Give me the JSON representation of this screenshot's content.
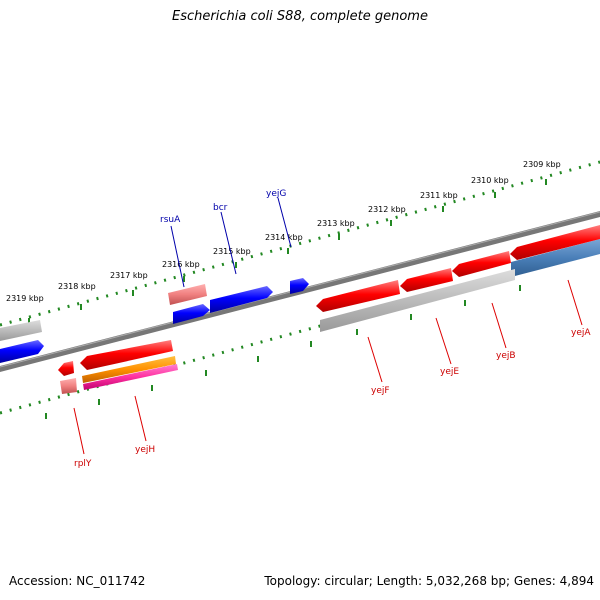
{
  "title": "Escherichia coli S88, complete genome",
  "footer": {
    "accession": "Accession: NC_011742",
    "topology": "Topology: circular; Length: 5,032,268 bp; Genes: 4,894"
  },
  "colors": {
    "forward_cds": "#ee0000",
    "reverse_cds": "#0000ee",
    "forward_label": "#cc0000",
    "reverse_label": "#0000aa",
    "ruler_ticks": "#228822",
    "backbone": "#777777"
  },
  "scale_labels": [
    "2309 kbp",
    "2310 kbp",
    "2311 kbp",
    "2312 kbp",
    "2313 kbp",
    "2314 kbp",
    "2315 kbp",
    "2316 kbp",
    "2317 kbp",
    "2318 kbp",
    "2319 kbp"
  ],
  "genes_forward_strand_labels": [
    "rsuA",
    "bcr",
    "yejG"
  ],
  "genes_reverse_strand_labels": [
    "yejA",
    "yejB",
    "yejE",
    "yejF",
    "yejH",
    "rplY"
  ]
}
